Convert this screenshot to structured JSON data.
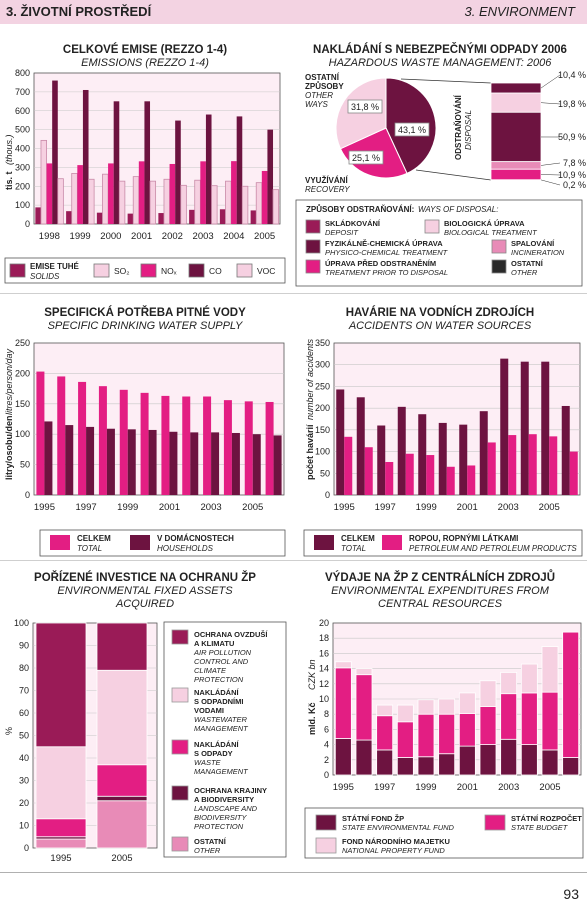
{
  "header": {
    "left": "3. ŽIVOTNÍ PROSTŘEDÍ",
    "right": "3. ENVIRONMENT"
  },
  "page_number": "93",
  "colors": {
    "c1": "#9a1b57",
    "c2": "#f6d0e1",
    "c3": "#e31e83",
    "c4": "#6d1340",
    "c5": "#f6d0e1",
    "c6": "#2a2a2a",
    "c7": "#e88bb7"
  },
  "emissions": {
    "title_cz": "CELKOVÉ EMISE (REZZO 1-4)",
    "title_en": "EMISSIONS (REZZO 1-4)",
    "ylabel_cz": "tis. t",
    "ylabel_en": "(thous.)",
    "legend": [
      {
        "cz": "EMISE TUHÉ",
        "en": "SOLIDS"
      },
      {
        "cz": "SO₂",
        "en": ""
      },
      {
        "cz": "NOₓ",
        "en": ""
      },
      {
        "cz": "CO",
        "en": ""
      },
      {
        "cz": "VOC",
        "en": ""
      }
    ]
  },
  "waste": {
    "title_cz": "NAKLÁDÁNÍ S NEBEZPEČNÝMI ODPADY 2006",
    "title_en": "HAZARDOUS WASTE MANAGEMENT: 2006",
    "other_cz": "OSTATNÍ ZPŮSOBY",
    "other_en": "OTHER WAYS",
    "recovery_cz": "VYUŽÍVÁNÍ",
    "recovery_en": "RECOVERY",
    "disposal_cz": "ODSTRAŇOVÁNÍ",
    "disposal_en": "DISPOSAL",
    "legend_head_cz": "ZPŮSOBY ODSTRAŇOVÁNÍ:",
    "legend_head_en": "WAYS OF DISPOSAL:",
    "legend": [
      {
        "cz": "SKLÁDKOVÁNÍ",
        "en": "DEPOSIT"
      },
      {
        "cz": "BIOLOGICKÁ ÚPRAVA",
        "en": "BIOLOGICAL TREATMENT"
      },
      {
        "cz": "FYZIKÁLNĚ-CHEMICKÁ ÚPRAVA",
        "en": "PHYSICO-CHEMICAL TREATMENT"
      },
      {
        "cz": "SPALOVÁNÍ",
        "en": "INCINERATION"
      },
      {
        "cz": "ÚPRAVA PŘED ODSTRANĚNÍM",
        "en": "TREATMENT PRIOR TO DISPOSAL"
      },
      {
        "cz": "OSTATNÍ",
        "en": "OTHER"
      }
    ]
  },
  "water": {
    "title_cz": "SPECIFICKÁ POTŘEBA PITNÉ VODY",
    "title_en": "SPECIFIC DRINKING WATER SUPPLY",
    "ylabel_cz": "litry/osobu/den",
    "ylabel_en": "litres/person/day",
    "legend": [
      {
        "cz": "CELKEM",
        "en": "TOTAL"
      },
      {
        "cz": "V DOMÁCNOSTECH",
        "en": "HOUSEHOLDS"
      }
    ]
  },
  "accidents": {
    "title_cz": "HAVÁRIE NA VODNÍCH ZDROJÍCH",
    "title_en": "ACCIDENTS ON WATER SOURCES",
    "ylabel_cz": "počet havárií",
    "ylabel_en": "number of accidents",
    "legend": [
      {
        "cz": "CELKEM",
        "en": "TOTAL"
      },
      {
        "cz": "ROPOU, ROPNÝMI LÁTKAMI",
        "en": "PETROLEUM AND PETROLEUM PRODUCTS"
      }
    ]
  },
  "investment": {
    "title_cz": "POŘÍZENÉ INVESTICE NA OCHRANU ŽP",
    "title_en1": "ENVIRONMENTAL FIXED ASSETS",
    "title_en2": "ACQUIRED",
    "ylabel": "%",
    "legend": [
      {
        "cz": [
          "OCHRANA OVZDUŠÍ",
          "A KLIMATU"
        ],
        "en": [
          "AIR POLLUTION",
          "CONTROL AND",
          "CLIMATE",
          "PROTECTION"
        ]
      },
      {
        "cz": [
          "NAKLÁDÁNÍ",
          "S ODPADNÍMI",
          "VODAMI"
        ],
        "en": [
          "WASTEWATER",
          "MANAGEMENT"
        ]
      },
      {
        "cz": [
          "NAKLÁDÁNÍ",
          "S ODPADY"
        ],
        "en": [
          "WASTE",
          "MANAGEMENT"
        ]
      },
      {
        "cz": [
          "OCHRANA KRAJINY",
          "A BIODIVERSITY"
        ],
        "en": [
          "LANDSCAPE AND",
          "BIODIVERSITY",
          "PROTECTION"
        ]
      },
      {
        "cz": [
          "OSTATNÍ"
        ],
        "en": [
          "OTHER"
        ]
      }
    ]
  },
  "expenditure": {
    "title_cz": "VÝDAJE NA ŽP Z CENTRÁLNÍCH ZDROJŮ",
    "title_en1": "ENVIRONMENTAL EXPENDITURES FROM",
    "title_en2": "CENTRAL RESOURCES",
    "ylabel_cz": "mld. Kč",
    "ylabel_en": "CZK bn",
    "legend": [
      {
        "cz": "STÁTNÍ FOND ŽP",
        "en": "STATE ENVIRONMENTAL FUND"
      },
      {
        "cz": "STÁTNÍ ROZPOČET",
        "en": "STATE BUDGET"
      },
      {
        "cz": "FOND NÁRODNÍHO MAJETKU",
        "en": "NATIONAL PROPERTY FUND"
      }
    ]
  },
  "chart_data": [
    {
      "type": "bar",
      "categories": [
        "1998",
        "1999",
        "2000",
        "2001",
        "2002",
        "2003",
        "2004",
        "2005"
      ],
      "series": [
        {
          "name": "EMISE TUHÉ",
          "values": [
            88,
            68,
            60,
            55,
            58,
            75,
            78,
            72
          ]
        },
        {
          "name": "SO₂",
          "values": [
            443,
            268,
            264,
            251,
            237,
            232,
            227,
            219
          ]
        },
        {
          "name": "NOₓ",
          "values": [
            321,
            312,
            321,
            332,
            318,
            332,
            333,
            281
          ]
        },
        {
          "name": "CO",
          "values": [
            760,
            710,
            650,
            650,
            548,
            580,
            570,
            500
          ]
        },
        {
          "name": "VOC",
          "values": [
            240,
            237,
            227,
            227,
            205,
            203,
            200,
            182
          ]
        }
      ],
      "ylim": [
        0,
        800
      ],
      "yticks": [
        0,
        100,
        200,
        300,
        400,
        500,
        600,
        700,
        800
      ],
      "grid": true
    },
    {
      "type": "pie",
      "labels": [
        "43,1 %",
        "25,1 %",
        "31,8 %"
      ],
      "values": [
        43.1,
        25.1,
        31.8
      ],
      "stack_values": [
        10.4,
        19.8,
        50.9,
        7.8,
        10.9,
        0.2
      ],
      "stack_labels": [
        "10,4 %",
        "19,8 %",
        "50,9 %",
        "7,8 %",
        "10,9 %",
        "0,2 %"
      ]
    },
    {
      "type": "bar",
      "categories": [
        "1995",
        "1996",
        "1997",
        "1998",
        "1999",
        "2000",
        "2001",
        "2002",
        "2003",
        "2004",
        "2005",
        "2006"
      ],
      "x_labels": [
        "1995",
        "1997",
        "1999",
        "2001",
        "2003",
        "2005"
      ],
      "series": [
        {
          "name": "CELKEM",
          "values": [
            203,
            195,
            186,
            179,
            173,
            168,
            163,
            162,
            162,
            156,
            154,
            153
          ]
        },
        {
          "name": "V DOMÁCNOSTECH",
          "values": [
            121,
            115,
            112,
            109,
            108,
            107,
            104,
            103,
            103,
            102,
            100,
            98
          ]
        }
      ],
      "ylim": [
        0,
        250
      ],
      "yticks": [
        0,
        50,
        100,
        150,
        200,
        250
      ],
      "grid": true
    },
    {
      "type": "bar",
      "categories": [
        "1995",
        "1996",
        "1997",
        "1998",
        "1999",
        "2000",
        "2001",
        "2002",
        "2003",
        "2004",
        "2005",
        "2006"
      ],
      "x_labels": [
        "1995",
        "1997",
        "1999",
        "2001",
        "2003",
        "2005"
      ],
      "series": [
        {
          "name": "CELKEM",
          "values": [
            243,
            225,
            160,
            203,
            186,
            166,
            162,
            193,
            314,
            307,
            307,
            205
          ]
        },
        {
          "name": "ROPOU, ROPNÝMI LÁTKAMI",
          "values": [
            134,
            110,
            76,
            95,
            92,
            65,
            68,
            121,
            138,
            140,
            135,
            100
          ]
        }
      ],
      "ylim": [
        0,
        350
      ],
      "yticks": [
        0,
        50,
        100,
        150,
        200,
        250,
        300,
        350
      ],
      "grid": true
    },
    {
      "type": "bar",
      "stacked": true,
      "categories": [
        "1995",
        "2005"
      ],
      "series": [
        {
          "name": "OSTATNÍ",
          "values": [
            4,
            21
          ]
        },
        {
          "name": "OCHRANA KRAJINY A BIODIVERSITY",
          "values": [
            1,
            2
          ]
        },
        {
          "name": "NAKLÁDÁNÍ S ODPADY",
          "values": [
            8,
            14
          ]
        },
        {
          "name": "NAKLÁDÁNÍ S ODPADNÍMI VODAMI",
          "values": [
            32,
            42
          ]
        },
        {
          "name": "OCHRANA OVZDUŠÍ A KLIMATU",
          "values": [
            55,
            21
          ]
        }
      ],
      "ylim": [
        0,
        100
      ],
      "yticks": [
        0,
        10,
        20,
        30,
        40,
        50,
        60,
        70,
        80,
        90,
        100
      ],
      "grid": true
    },
    {
      "type": "bar",
      "stacked": true,
      "categories": [
        "1995",
        "1996",
        "1997",
        "1998",
        "1999",
        "2000",
        "2001",
        "2002",
        "2003",
        "2004",
        "2005",
        "2006"
      ],
      "x_labels": [
        "1995",
        "1997",
        "1999",
        "2001",
        "2003",
        "2005"
      ],
      "series": [
        {
          "name": "STÁTNÍ ROZPOČET",
          "values": [
            4.8,
            4.6,
            3.3,
            2.3,
            2.4,
            2.8,
            3.8,
            4.0,
            4.7,
            4.0,
            3.3,
            2.3
          ]
        },
        {
          "name": "STÁTNÍ FOND ŽP",
          "values": [
            9.3,
            8.6,
            4.5,
            4.7,
            5.6,
            5.2,
            4.3,
            5.0,
            6.0,
            6.8,
            7.6,
            16.5
          ]
        },
        {
          "name": "FOND NÁRODNÍHO MAJETKU",
          "values": [
            0.8,
            0.8,
            1.4,
            2.2,
            1.9,
            2.0,
            2.7,
            3.4,
            2.8,
            3.8,
            6.0,
            0.0
          ]
        }
      ],
      "ylim": [
        0,
        20
      ],
      "yticks": [
        0,
        2,
        4,
        6,
        8,
        10,
        12,
        14,
        16,
        18,
        20
      ],
      "grid": true
    }
  ]
}
